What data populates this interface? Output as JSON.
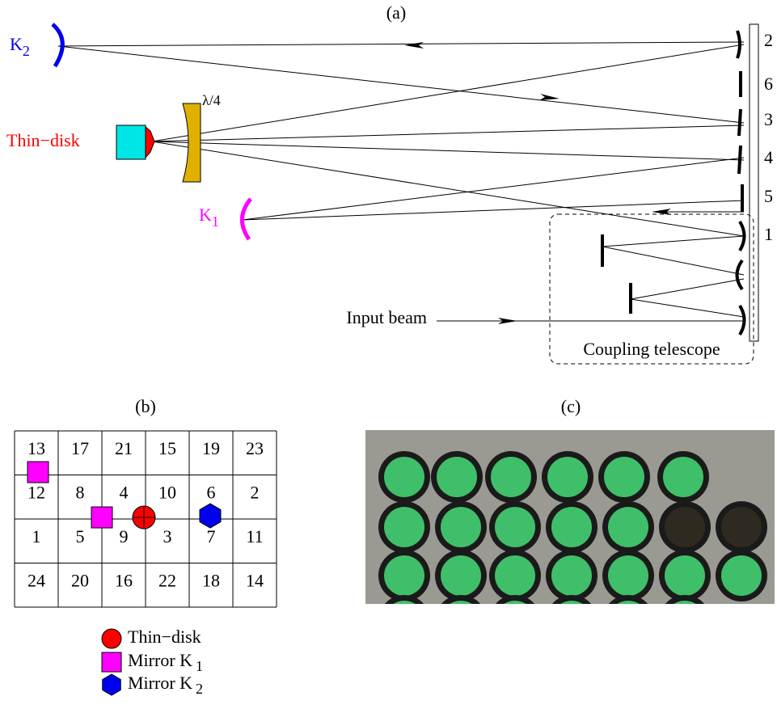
{
  "panel_a": {
    "label": "(a)",
    "k2": {
      "name": "K",
      "sub": "2"
    },
    "thin_disk": "Thin−disk",
    "waveplate": "λ/4",
    "k1": {
      "name": "K",
      "sub": "1"
    },
    "mirror_numbers": [
      2,
      6,
      3,
      4,
      5,
      1
    ],
    "input_beam": "Input beam",
    "coupling_telescope": "Coupling telescope"
  },
  "panel_b": {
    "label": "(b)",
    "grid": [
      [
        13,
        17,
        21,
        15,
        19,
        23
      ],
      [
        12,
        8,
        4,
        10,
        6,
        2
      ],
      [
        1,
        5,
        9,
        3,
        7,
        11
      ],
      [
        24,
        20,
        16,
        22,
        18,
        14
      ]
    ],
    "legend": [
      {
        "label": "Thin−disk"
      },
      {
        "label": "Mirror K",
        "sub": "1"
      },
      {
        "label": "Mirror K",
        "sub": "2"
      }
    ]
  },
  "panel_c": {
    "label": "(c)"
  }
}
